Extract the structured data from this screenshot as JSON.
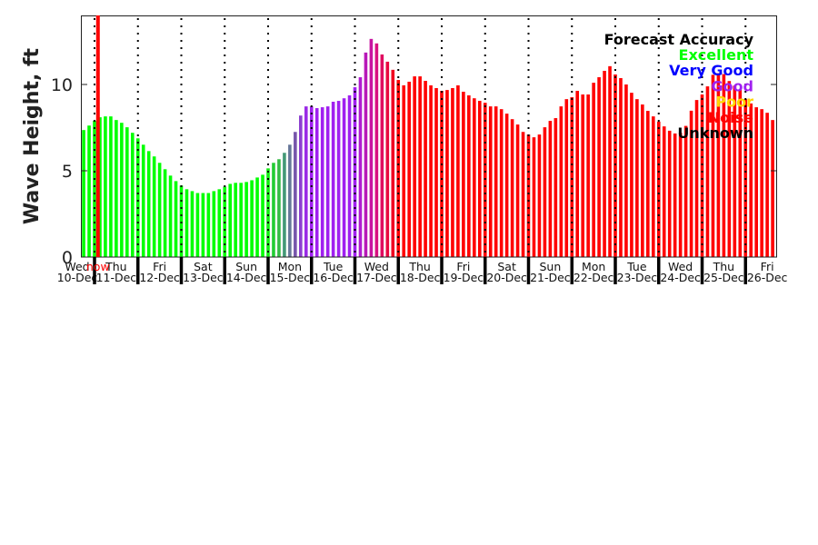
{
  "chart_data": {
    "type": "bar",
    "title": "",
    "xlabel": "",
    "ylabel": "Wave Height, ft",
    "ylim": [
      0,
      14
    ],
    "yticks": [
      "0",
      "5",
      "10"
    ],
    "now_label": "now",
    "now_hours_after_thu_midnight": 1.9,
    "interval_hours": 3,
    "legend": {
      "placement": "top-right",
      "title": "Forecast Accuracy",
      "entries": [
        {
          "label": "Excellent",
          "color": "#00ff00"
        },
        {
          "label": "Very Good",
          "color": "#0000ff"
        },
        {
          "label": "Good",
          "color": "#a020f0"
        },
        {
          "label": "Poor",
          "color": "#ffd700"
        },
        {
          "label": "Noise",
          "color": "#ff0000"
        },
        {
          "label": "Unknown",
          "color": "#000000"
        }
      ]
    },
    "days": [
      {
        "day": "Wed",
        "date": "10-Dec",
        "start_hour": 18,
        "values": [
          7.36,
          7.62
        ],
        "colors": [
          "#00ff00",
          "#00ff00"
        ]
      },
      {
        "day": "Thu",
        "date": "11-Dec",
        "start_hour": 0,
        "values": [
          7.9,
          8.1,
          8.15,
          8.15,
          7.94,
          7.78,
          7.52,
          7.2
        ],
        "colors": "#00ff00"
      },
      {
        "day": "Fri",
        "date": "12-Dec",
        "start_hour": 0,
        "values": [
          6.88,
          6.51,
          6.14,
          5.83,
          5.46,
          5.09,
          4.72,
          4.4
        ],
        "colors": "#00ff00"
      },
      {
        "day": "Sat",
        "date": "13-Dec",
        "start_hour": 0,
        "values": [
          4.14,
          3.93,
          3.82,
          3.71,
          3.71,
          3.71,
          3.82,
          3.93
        ],
        "colors": "#00ff00"
      },
      {
        "day": "Sun",
        "date": "14-Dec",
        "start_hour": 0,
        "values": [
          4.08,
          4.24,
          4.3,
          4.3,
          4.35,
          4.45,
          4.61,
          4.77
        ],
        "colors": "#00ff00"
      },
      {
        "day": "Mon",
        "date": "15-Dec",
        "start_hour": 0,
        "values": [
          5.14,
          5.46,
          5.67,
          6.04,
          6.51,
          7.25,
          8.2,
          8.73
        ],
        "colors": [
          "#11ee11",
          "#22cc33",
          "#33bb44",
          "#449977",
          "#667799",
          "#7755aa",
          "#8c3ed0",
          "#9a2ae6"
        ]
      },
      {
        "day": "Tue",
        "date": "16-Dec",
        "start_hour": 0,
        "values": [
          8.73,
          8.63,
          8.68,
          8.73,
          9.0,
          9.05,
          9.2,
          9.37
        ],
        "colors": "#a020f0"
      },
      {
        "day": "Wed",
        "date": "17-Dec",
        "start_hour": 0,
        "values": [
          9.84,
          10.42,
          11.85,
          12.64,
          12.38,
          11.74,
          11.32,
          10.85
        ],
        "colors": [
          "#a020f0",
          "#b01cd0",
          "#b818b8",
          "#c814a0",
          "#d81080",
          "#e00c60",
          "#e80840",
          "#f00420"
        ]
      },
      {
        "day": "Thu",
        "date": "18-Dec",
        "start_hour": 0,
        "values": [
          10.26,
          9.95,
          10.16,
          10.47,
          10.47,
          10.21,
          9.95,
          9.79
        ],
        "colors": "#ff0000"
      },
      {
        "day": "Fri",
        "date": "19-Dec",
        "start_hour": 0,
        "values": [
          9.63,
          9.68,
          9.79,
          9.95,
          9.58,
          9.37,
          9.2,
          9.05
        ],
        "colors": "#ff0000"
      },
      {
        "day": "Sat",
        "date": "20-Dec",
        "start_hour": 0,
        "values": [
          8.94,
          8.73,
          8.73,
          8.57,
          8.31,
          7.99,
          7.68,
          7.25
        ],
        "colors": "#ff0000"
      },
      {
        "day": "Sun",
        "date": "21-Dec",
        "start_hour": 0,
        "values": [
          7.1,
          6.94,
          7.1,
          7.52,
          7.89,
          8.05,
          8.73,
          9.15
        ],
        "colors": "#ff0000"
      },
      {
        "day": "Mon",
        "date": "22-Dec",
        "start_hour": 0,
        "values": [
          9.26,
          9.63,
          9.42,
          9.42,
          10.1,
          10.42,
          10.79,
          11.06
        ],
        "colors": "#ff0000"
      },
      {
        "day": "Tue",
        "date": "23-Dec",
        "start_hour": 0,
        "values": [
          10.58,
          10.37,
          10.0,
          9.52,
          9.15,
          8.84,
          8.47,
          8.15
        ],
        "colors": "#ff0000"
      },
      {
        "day": "Wed",
        "date": "24-Dec",
        "start_hour": 0,
        "values": [
          7.85,
          7.57,
          7.32,
          7.16,
          7.2,
          7.6,
          8.48,
          9.1
        ],
        "colors": "#ff0000"
      },
      {
        "day": "Thu",
        "date": "25-Dec",
        "start_hour": 0,
        "values": [
          9.42,
          9.89,
          10.56,
          10.65,
          10.6,
          10.2,
          9.93,
          9.7
        ],
        "colors": "#ff0000"
      },
      {
        "day": "Fri",
        "date": "26-Dec",
        "start_hour": 0,
        "values": [
          9.15,
          8.9,
          8.68,
          8.57,
          8.36,
          7.94
        ],
        "colors": "#ff0000"
      }
    ]
  }
}
